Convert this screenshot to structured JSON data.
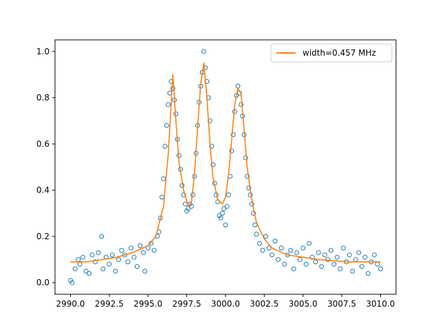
{
  "chart_data": {
    "type": "scatter",
    "title": "",
    "xlabel": "",
    "ylabel": "",
    "xlim": [
      2989.0,
      3011.0
    ],
    "ylim": [
      -0.05,
      1.05
    ],
    "x_ticks": [
      2990.0,
      2992.5,
      2995.0,
      2997.5,
      3000.0,
      3002.5,
      3005.0,
      3007.5,
      3010.0
    ],
    "x_tick_labels": [
      "2990.0",
      "2992.5",
      "2995.0",
      "2997.5",
      "3000.0",
      "3002.5",
      "3005.0",
      "3007.5",
      "3010.0"
    ],
    "y_ticks": [
      0.0,
      0.2,
      0.4,
      0.6,
      0.8,
      1.0
    ],
    "y_tick_labels": [
      "0.0",
      "0.2",
      "0.4",
      "0.6",
      "0.8",
      "1.0"
    ],
    "grid": false,
    "legend": {
      "placement": "top-right",
      "entries": [
        "width=0.457 MHz"
      ]
    },
    "colors": {
      "data": "#1f77b4",
      "fit": "#ff7f0e"
    },
    "series": [
      {
        "kind": "markers",
        "marker": "open-circle",
        "points": [
          [
            2990.0,
            0.01
          ],
          [
            2990.1,
            0.0
          ],
          [
            2990.3,
            0.06
          ],
          [
            2990.5,
            0.1
          ],
          [
            2990.6,
            0.08
          ],
          [
            2990.8,
            0.11
          ],
          [
            2991.0,
            0.05
          ],
          [
            2991.2,
            0.04
          ],
          [
            2991.4,
            0.12
          ],
          [
            2991.6,
            0.09
          ],
          [
            2991.8,
            0.13
          ],
          [
            2992.0,
            0.2
          ],
          [
            2992.1,
            0.06
          ],
          [
            2992.3,
            0.11
          ],
          [
            2992.5,
            0.08
          ],
          [
            2992.7,
            0.12
          ],
          [
            2992.9,
            0.05
          ],
          [
            2993.1,
            0.1
          ],
          [
            2993.3,
            0.14
          ],
          [
            2993.5,
            0.12
          ],
          [
            2993.7,
            0.09
          ],
          [
            2993.9,
            0.15
          ],
          [
            2994.1,
            0.11
          ],
          [
            2994.3,
            0.07
          ],
          [
            2994.5,
            0.16
          ],
          [
            2994.7,
            0.13
          ],
          [
            2994.8,
            0.05
          ],
          [
            2995.0,
            0.15
          ],
          [
            2995.2,
            0.17
          ],
          [
            2995.4,
            0.14
          ],
          [
            2995.6,
            0.2
          ],
          [
            2995.7,
            0.22
          ],
          [
            2995.8,
            0.28
          ],
          [
            2995.9,
            0.37
          ],
          [
            2996.0,
            0.45
          ],
          [
            2996.1,
            0.59
          ],
          [
            2996.2,
            0.68
          ],
          [
            2996.3,
            0.77
          ],
          [
            2996.4,
            0.82
          ],
          [
            2996.5,
            0.87
          ],
          [
            2996.6,
            0.84
          ],
          [
            2996.7,
            0.79
          ],
          [
            2996.8,
            0.73
          ],
          [
            2996.9,
            0.62
          ],
          [
            2997.0,
            0.55
          ],
          [
            2997.1,
            0.49
          ],
          [
            2997.2,
            0.42
          ],
          [
            2997.3,
            0.38
          ],
          [
            2997.4,
            0.34
          ],
          [
            2997.5,
            0.31
          ],
          [
            2997.6,
            0.32
          ],
          [
            2997.7,
            0.34
          ],
          [
            2997.8,
            0.33
          ],
          [
            2997.9,
            0.38
          ],
          [
            2998.0,
            0.46
          ],
          [
            2998.1,
            0.56
          ],
          [
            2998.2,
            0.68
          ],
          [
            2998.3,
            0.78
          ],
          [
            2998.4,
            0.85
          ],
          [
            2998.5,
            0.91
          ],
          [
            2998.6,
            1.0
          ],
          [
            2998.7,
            0.93
          ],
          [
            2998.8,
            0.87
          ],
          [
            2998.9,
            0.8
          ],
          [
            2999.0,
            0.7
          ],
          [
            2999.1,
            0.59
          ],
          [
            2999.2,
            0.51
          ],
          [
            2999.3,
            0.43
          ],
          [
            2999.4,
            0.38
          ],
          [
            2999.5,
            0.35
          ],
          [
            2999.6,
            0.29
          ],
          [
            2999.7,
            0.28
          ],
          [
            2999.8,
            0.3
          ],
          [
            2999.9,
            0.32
          ],
          [
            3000.0,
            0.25
          ],
          [
            3000.1,
            0.33
          ],
          [
            3000.2,
            0.38
          ],
          [
            3000.3,
            0.46
          ],
          [
            3000.4,
            0.57
          ],
          [
            3000.5,
            0.64
          ],
          [
            3000.6,
            0.74
          ],
          [
            3000.7,
            0.81
          ],
          [
            3000.8,
            0.85
          ],
          [
            3000.9,
            0.82
          ],
          [
            3001.0,
            0.77
          ],
          [
            3001.1,
            0.72
          ],
          [
            3001.2,
            0.64
          ],
          [
            3001.3,
            0.54
          ],
          [
            3001.4,
            0.46
          ],
          [
            3001.5,
            0.41
          ],
          [
            3001.6,
            0.38
          ],
          [
            3001.7,
            0.34
          ],
          [
            3001.8,
            0.3
          ],
          [
            3001.9,
            0.25
          ],
          [
            3002.0,
            0.21
          ],
          [
            3002.2,
            0.17
          ],
          [
            3002.4,
            0.14
          ],
          [
            3002.6,
            0.2
          ],
          [
            3002.8,
            0.15
          ],
          [
            3003.0,
            0.12
          ],
          [
            3003.2,
            0.18
          ],
          [
            3003.4,
            0.1
          ],
          [
            3003.6,
            0.15
          ],
          [
            3003.8,
            0.08
          ],
          [
            3004.0,
            0.12
          ],
          [
            3004.2,
            0.14
          ],
          [
            3004.4,
            0.06
          ],
          [
            3004.6,
            0.13
          ],
          [
            3004.8,
            0.1
          ],
          [
            3005.0,
            0.15
          ],
          [
            3005.2,
            0.08
          ],
          [
            3005.4,
            0.17
          ],
          [
            3005.6,
            0.11
          ],
          [
            3005.8,
            0.09
          ],
          [
            3006.0,
            0.13
          ],
          [
            3006.2,
            0.07
          ],
          [
            3006.4,
            0.12
          ],
          [
            3006.6,
            0.1
          ],
          [
            3006.8,
            0.14
          ],
          [
            3007.0,
            0.08
          ],
          [
            3007.2,
            0.11
          ],
          [
            3007.4,
            0.06
          ],
          [
            3007.6,
            0.15
          ],
          [
            3007.8,
            0.09
          ],
          [
            3008.0,
            0.12
          ],
          [
            3008.2,
            0.05
          ],
          [
            3008.4,
            0.1
          ],
          [
            3008.6,
            0.13
          ],
          [
            3008.8,
            0.07
          ],
          [
            3009.0,
            0.11
          ],
          [
            3009.2,
            0.04
          ],
          [
            3009.4,
            0.09
          ],
          [
            3009.6,
            0.12
          ],
          [
            3009.8,
            0.08
          ],
          [
            3010.0,
            0.06
          ]
        ]
      },
      {
        "name": "width=0.457 MHz",
        "kind": "line",
        "points": [
          [
            2990.0,
            0.09
          ],
          [
            2991.0,
            0.09
          ],
          [
            2992.0,
            0.1
          ],
          [
            2993.0,
            0.11
          ],
          [
            2994.0,
            0.13
          ],
          [
            2995.0,
            0.16
          ],
          [
            2995.5,
            0.2
          ],
          [
            2996.0,
            0.33
          ],
          [
            2996.3,
            0.55
          ],
          [
            2996.5,
            0.78
          ],
          [
            2996.6,
            0.9
          ],
          [
            2996.8,
            0.7
          ],
          [
            2997.0,
            0.52
          ],
          [
            2997.3,
            0.4
          ],
          [
            2997.6,
            0.33
          ],
          [
            2997.8,
            0.35
          ],
          [
            2998.0,
            0.47
          ],
          [
            2998.2,
            0.67
          ],
          [
            2998.4,
            0.86
          ],
          [
            2998.6,
            0.95
          ],
          [
            2998.8,
            0.8
          ],
          [
            2999.0,
            0.6
          ],
          [
            2999.2,
            0.45
          ],
          [
            2999.5,
            0.36
          ],
          [
            2999.8,
            0.34
          ],
          [
            3000.0,
            0.37
          ],
          [
            3000.2,
            0.47
          ],
          [
            3000.4,
            0.62
          ],
          [
            3000.6,
            0.77
          ],
          [
            3000.8,
            0.84
          ],
          [
            3001.0,
            0.82
          ],
          [
            3001.2,
            0.66
          ],
          [
            3001.4,
            0.5
          ],
          [
            3001.6,
            0.4
          ],
          [
            3001.8,
            0.32
          ],
          [
            3002.0,
            0.26
          ],
          [
            3002.5,
            0.19
          ],
          [
            3003.0,
            0.15
          ],
          [
            3004.0,
            0.12
          ],
          [
            3005.0,
            0.11
          ],
          [
            3006.0,
            0.1
          ],
          [
            3007.0,
            0.095
          ],
          [
            3008.0,
            0.09
          ],
          [
            3009.0,
            0.09
          ],
          [
            3010.0,
            0.09
          ]
        ]
      }
    ]
  }
}
